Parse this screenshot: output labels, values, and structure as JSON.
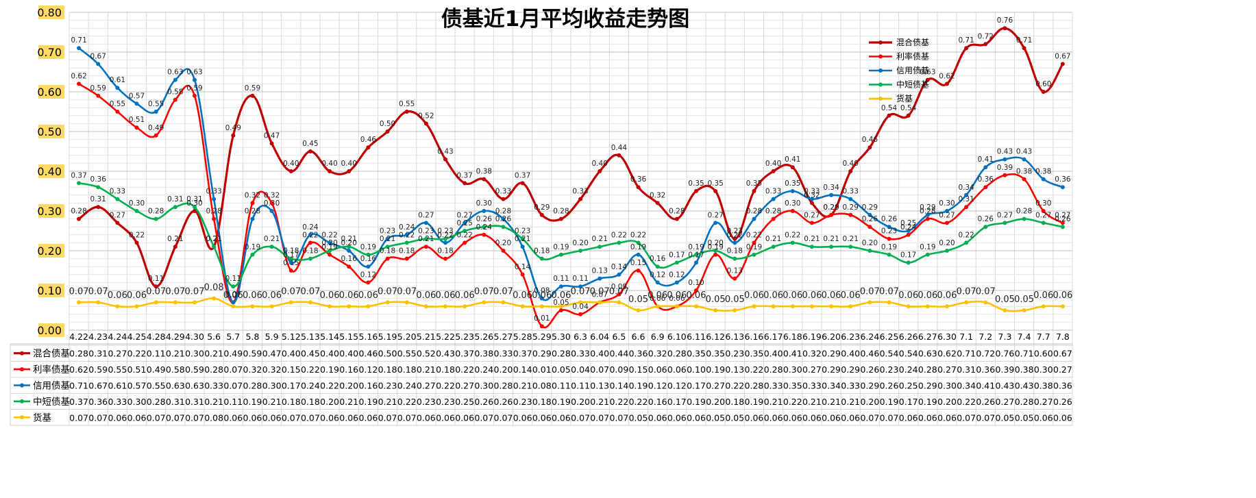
{
  "chart_data": {
    "type": "line",
    "title": "债基近1月平均收益走势图",
    "xlabel": "",
    "ylabel": "",
    "ylim": [
      0,
      0.8
    ],
    "yticks": [
      "0.00",
      "0.10",
      "0.20",
      "0.30",
      "0.40",
      "0.50",
      "0.60",
      "0.70",
      "0.80"
    ],
    "grid": true,
    "legend_position": "top-right",
    "data_table": true,
    "categories": [
      "4.22",
      "4.23",
      "4.24",
      "4.25",
      "4.28",
      "4.29",
      "4.30",
      "5.6",
      "5.7",
      "5.8",
      "5.9",
      "5.12",
      "5.13",
      "5.14",
      "5.15",
      "5.16",
      "5.19",
      "5.20",
      "5.21",
      "5.22",
      "5.23",
      "5.26",
      "5.27",
      "5.28",
      "5.29",
      "5.30",
      "6.3",
      "6.04",
      "6.5",
      "6.6",
      "6.9",
      "6.10",
      "6.11",
      "6.12",
      "6.13",
      "6.16",
      "6.17",
      "6.18",
      "6.19",
      "6.20",
      "6.23",
      "6.24",
      "6.25",
      "6.26",
      "6.27",
      "6.30",
      "7.1",
      "7.2",
      "7.3",
      "7.4",
      "7.7",
      "7.8"
    ],
    "series": [
      {
        "name": "混合债基",
        "color": "#C00000",
        "values": [
          0.28,
          0.31,
          0.27,
          0.22,
          0.11,
          0.21,
          0.3,
          0.21,
          0.49,
          0.59,
          0.47,
          0.4,
          0.45,
          0.4,
          0.4,
          0.46,
          0.5,
          0.55,
          0.52,
          0.43,
          0.37,
          0.38,
          0.33,
          0.37,
          0.29,
          0.28,
          0.33,
          0.4,
          0.44,
          0.36,
          0.32,
          0.28,
          0.35,
          0.35,
          0.23,
          0.35,
          0.4,
          0.41,
          0.32,
          0.29,
          0.4,
          0.46,
          0.54,
          0.54,
          0.63,
          0.62,
          0.71,
          0.72,
          0.76,
          0.71,
          0.6,
          0.67
        ]
      },
      {
        "name": "利率债基",
        "color": "#FF0000",
        "values": [
          0.62,
          0.59,
          0.55,
          0.51,
          0.49,
          0.58,
          0.59,
          0.28,
          0.07,
          0.32,
          0.32,
          0.15,
          0.22,
          0.19,
          0.16,
          0.12,
          0.18,
          0.18,
          0.21,
          0.18,
          0.22,
          0.24,
          0.2,
          0.14,
          0.01,
          0.05,
          0.04,
          0.07,
          0.09,
          0.15,
          0.06,
          0.06,
          0.1,
          0.19,
          0.13,
          0.22,
          0.28,
          0.3,
          0.27,
          0.29,
          0.29,
          0.26,
          0.23,
          0.24,
          0.28,
          0.27,
          0.31,
          0.36,
          0.39,
          0.38,
          0.3,
          0.27
        ]
      },
      {
        "name": "信用债基",
        "color": "#0070C0",
        "values": [
          0.71,
          0.67,
          0.61,
          0.57,
          0.55,
          0.63,
          0.63,
          0.33,
          0.07,
          0.28,
          0.3,
          0.17,
          0.24,
          0.22,
          0.2,
          0.16,
          0.23,
          0.24,
          0.27,
          0.22,
          0.27,
          0.3,
          0.28,
          0.21,
          0.08,
          0.11,
          0.11,
          0.13,
          0.14,
          0.19,
          0.12,
          0.12,
          0.17,
          0.27,
          0.22,
          0.28,
          0.33,
          0.35,
          0.33,
          0.34,
          0.33,
          0.29,
          0.26,
          0.25,
          0.29,
          0.3,
          0.34,
          0.41,
          0.43,
          0.43,
          0.38,
          0.36
        ]
      },
      {
        "name": "中短债基",
        "color": "#00B050",
        "values": [
          0.37,
          0.36,
          0.33,
          0.3,
          0.28,
          0.31,
          0.31,
          0.21,
          0.11,
          0.19,
          0.21,
          0.18,
          0.18,
          0.2,
          0.21,
          0.19,
          0.21,
          0.22,
          0.23,
          0.23,
          0.25,
          0.26,
          0.26,
          0.23,
          0.18,
          0.19,
          0.2,
          0.21,
          0.22,
          0.22,
          0.16,
          0.17,
          0.19,
          0.2,
          0.18,
          0.19,
          0.21,
          0.22,
          0.21,
          0.21,
          0.21,
          0.2,
          0.19,
          0.17,
          0.19,
          0.2,
          0.22,
          0.26,
          0.27,
          0.28,
          0.27,
          0.26
        ]
      },
      {
        "name": "货基",
        "color": "#FFC000",
        "values": [
          0.07,
          0.07,
          0.06,
          0.06,
          0.07,
          0.07,
          0.07,
          0.08,
          0.06,
          0.06,
          0.06,
          0.07,
          0.07,
          0.06,
          0.06,
          0.06,
          0.07,
          0.07,
          0.06,
          0.06,
          0.06,
          0.07,
          0.07,
          0.06,
          0.06,
          0.06,
          0.07,
          0.07,
          0.07,
          0.05,
          0.06,
          0.06,
          0.06,
          0.05,
          0.05,
          0.06,
          0.06,
          0.06,
          0.06,
          0.06,
          0.06,
          0.07,
          0.07,
          0.06,
          0.06,
          0.06,
          0.07,
          0.07,
          0.05,
          0.05,
          0.06,
          0.06
        ]
      }
    ]
  }
}
